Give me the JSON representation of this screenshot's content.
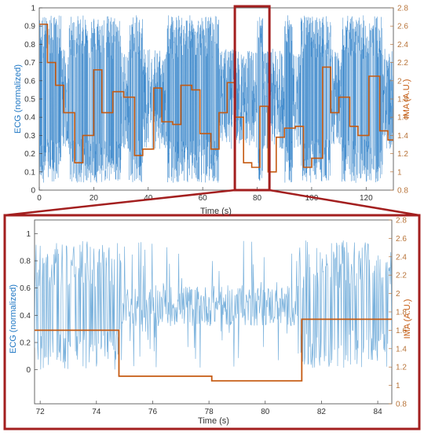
{
  "colors": {
    "ecg": "#1f77c4",
    "ecg_light": "#6aa9d8",
    "ima": "#c55a11",
    "frame": "#a31f1f",
    "axis": "#444444",
    "axis_right": "#b8743a",
    "grid": "#e6e6e6"
  },
  "chart_data": [
    {
      "type": "line",
      "panel": "overview",
      "xlabel": "Time (s)",
      "ylabel_left": "ECG (normalized)",
      "ylabel_right": "IMA (A.U.)",
      "xlim": [
        0,
        130
      ],
      "ylim_left": [
        0,
        1
      ],
      "ylim_right": [
        0.8,
        2.8
      ],
      "x_ticks": [
        "0",
        "20",
        "40",
        "60",
        "80",
        "100",
        "120"
      ],
      "y_ticks_left": [
        "0",
        "0.1",
        "0.2",
        "0.3",
        "0.4",
        "0.5",
        "0.6",
        "0.7",
        "0.8",
        "0.9",
        "1"
      ],
      "y_ticks_right": [
        "0.8",
        "1",
        "1.2",
        "1.4",
        "1.6",
        "1.8",
        "2",
        "2.2",
        "2.4",
        "2.6",
        "2.8"
      ],
      "zoom_window": [
        71.8,
        84.5
      ],
      "series": [
        {
          "axis": "right",
          "style": "step",
          "x": [
            0,
            3,
            6,
            9,
            13,
            16,
            20,
            23,
            27,
            31,
            35,
            38,
            42,
            45,
            49,
            52,
            56,
            59,
            63,
            66,
            69,
            72,
            75,
            78,
            81,
            84,
            87,
            90,
            94,
            97,
            100,
            104,
            107,
            110,
            114,
            117,
            121,
            125,
            128,
            130
          ],
          "values": [
            2.62,
            2.2,
            1.95,
            1.65,
            1.1,
            1.4,
            2.12,
            1.65,
            1.88,
            1.82,
            1.18,
            1.25,
            1.92,
            1.55,
            1.52,
            1.95,
            1.9,
            1.42,
            1.25,
            1.65,
            1.98,
            1.6,
            1.1,
            1.05,
            1.72,
            1.0,
            1.38,
            1.48,
            1.5,
            1.05,
            1.15,
            2.15,
            1.65,
            1.82,
            1.5,
            1.4,
            2.05,
            1.45,
            1.35,
            1.35
          ]
        }
      ]
    },
    {
      "type": "line",
      "panel": "zoom",
      "xlabel": "Time (s)",
      "ylabel_left": "ECG (normalized)",
      "ylabel_right": "IMA (A.U.)",
      "xlim": [
        71.8,
        84.5
      ],
      "ylim_left": [
        -0.25,
        1.1
      ],
      "ylim_right": [
        0.8,
        2.8
      ],
      "x_ticks": [
        "72",
        "74",
        "76",
        "78",
        "80",
        "82",
        "84"
      ],
      "y_ticks_left": [
        "0",
        "0.2",
        "0.4",
        "0.6",
        "0.8",
        "1"
      ],
      "y_ticks_right": [
        "0.8",
        "1",
        "1.2",
        "1.4",
        "1.6",
        "1.8",
        "2",
        "2.2",
        "2.4",
        "2.6",
        "2.8"
      ],
      "series": [
        {
          "axis": "right",
          "style": "step",
          "x": [
            71.8,
            74.8,
            74.8,
            78.1,
            78.1,
            81.3,
            81.3,
            84.5
          ],
          "values": [
            1.6,
            1.6,
            1.1,
            1.1,
            1.05,
            1.05,
            1.72,
            1.72
          ]
        }
      ]
    }
  ]
}
